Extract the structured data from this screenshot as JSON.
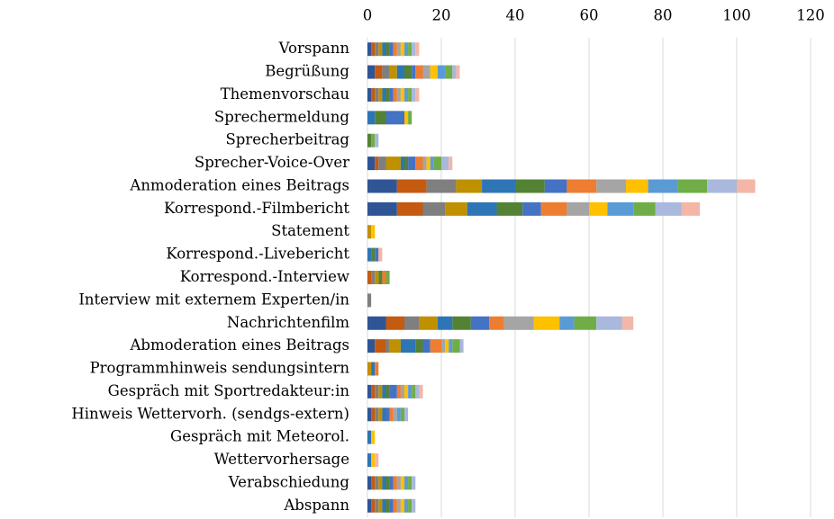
{
  "chart_data": {
    "type": "stacked-barh",
    "categories": [
      "Vorspann",
      "Begrüßung",
      "Themenvorschau",
      "Sprechermeldung",
      "Sprecherbeitrag",
      "Sprecher-Voice-Over",
      "Anmoderation eines Beitrags",
      "Korrespond.-Filmbericht",
      "Statement",
      "Korrespond.-Livebericht",
      "Korrespond.-Interview",
      "Interview mit externem Experten/in",
      "Nachrichtenfilm",
      "Abmoderation eines Beitrags",
      "Programmhinweis sendungsintern",
      "Gespräch mit Sportredakteur:in",
      "Hinweis Wettervorh. (sendgs-extern)",
      "Gespräch mit Meteorol.",
      "Wettervorhersage",
      "Verabschiedung",
      "Abspann"
    ],
    "series": [
      {
        "color": "#2f5597",
        "values": [
          1,
          2,
          1,
          0,
          0,
          2,
          8,
          8,
          0,
          0,
          0,
          0,
          5,
          2,
          0,
          1,
          1,
          0,
          0,
          1,
          1
        ]
      },
      {
        "color": "#c55a11",
        "values": [
          1,
          2,
          1,
          0,
          0,
          1,
          8,
          7,
          0,
          0,
          1,
          0,
          5,
          3,
          0,
          1,
          1,
          0,
          0,
          1,
          1
        ]
      },
      {
        "color": "#7f7f7f",
        "values": [
          1,
          2,
          1,
          0,
          0,
          2,
          8,
          6,
          0,
          0,
          1,
          1,
          4,
          1,
          0,
          1,
          1,
          0,
          0,
          1,
          1
        ]
      },
      {
        "color": "#bf9000",
        "values": [
          1,
          2,
          1,
          0,
          0,
          4,
          7,
          6,
          1,
          0,
          1,
          0,
          5,
          3,
          1,
          1,
          1,
          0,
          0,
          1,
          1
        ]
      },
      {
        "color": "#2e75b6",
        "values": [
          1,
          2,
          1,
          2,
          0,
          1,
          9,
          8,
          0,
          1,
          0,
          0,
          4,
          4,
          1,
          1,
          1,
          1,
          1,
          1,
          1
        ]
      },
      {
        "color": "#548235",
        "values": [
          1,
          2,
          1,
          3,
          1,
          1,
          8,
          7,
          0,
          1,
          1,
          0,
          5,
          2,
          0,
          1,
          0,
          0,
          0,
          1,
          1
        ]
      },
      {
        "color": "#4472c4",
        "values": [
          1,
          1,
          1,
          5,
          0,
          2,
          6,
          5,
          0,
          1,
          0,
          0,
          5,
          2,
          0,
          2,
          1,
          0,
          0,
          1,
          1
        ]
      },
      {
        "color": "#ed7d31",
        "values": [
          1,
          2,
          1,
          0,
          0,
          2,
          8,
          7,
          0,
          0,
          1,
          0,
          4,
          3,
          1,
          1,
          1,
          0,
          0,
          1,
          1
        ]
      },
      {
        "color": "#a5a5a5",
        "values": [
          1,
          2,
          1,
          0,
          0,
          1,
          8,
          6,
          0,
          0,
          0,
          0,
          8,
          1,
          0,
          1,
          1,
          0,
          0,
          1,
          1
        ]
      },
      {
        "color": "#ffc000",
        "values": [
          1,
          2,
          1,
          1,
          0,
          1,
          6,
          5,
          1,
          0,
          0,
          0,
          7,
          1,
          0,
          1,
          0,
          1,
          1,
          1,
          1
        ]
      },
      {
        "color": "#5b9bd5",
        "values": [
          1,
          2,
          1,
          0,
          0,
          1,
          8,
          7,
          0,
          0,
          0,
          0,
          4,
          1,
          0,
          1,
          1,
          0,
          0,
          1,
          1
        ]
      },
      {
        "color": "#70ad47",
        "values": [
          1,
          2,
          1,
          1,
          1,
          2,
          8,
          6,
          0,
          0,
          1,
          0,
          6,
          2,
          0,
          1,
          1,
          0,
          0,
          1,
          1
        ]
      },
      {
        "color": "#a9b8dc",
        "values": [
          1,
          1,
          1,
          0,
          1,
          2,
          8,
          7,
          0,
          0,
          0,
          0,
          7,
          1,
          0,
          1,
          1,
          0,
          0,
          1,
          1
        ]
      },
      {
        "color": "#f4b6a6",
        "values": [
          1,
          1,
          1,
          0,
          0,
          1,
          5,
          5,
          0,
          1,
          0,
          0,
          3,
          0,
          0,
          1,
          0,
          0,
          1,
          0,
          0
        ]
      }
    ],
    "xlim": [
      0,
      120
    ],
    "xticks": [
      0,
      20,
      40,
      60,
      80,
      100,
      120
    ],
    "grid": true
  }
}
